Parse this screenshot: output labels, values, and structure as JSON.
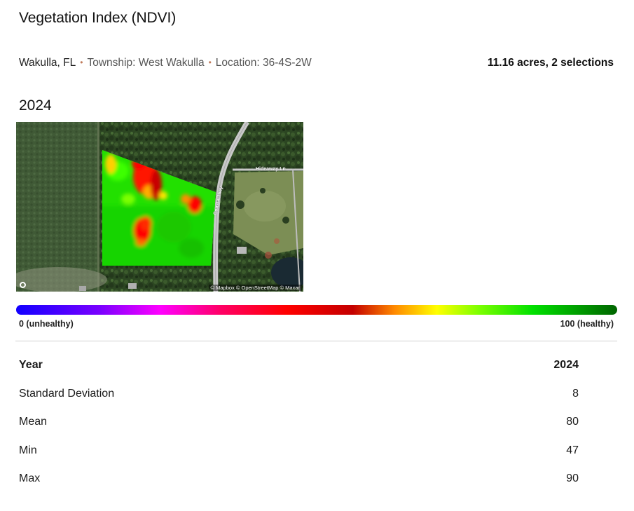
{
  "header": {
    "title": "Vegetation Index (NDVI)"
  },
  "location": {
    "county": "Wakulla, FL",
    "township": "Township: West Wakulla",
    "section": "Location: 36-4S-2W",
    "summary": "11.16 acres, 2 selections"
  },
  "map": {
    "year": "2024",
    "attribution": "© Mapbox © OpenStreetMap © Maxar",
    "road_labels": {
      "lane": "Hideaway Ln",
      "parkway": "Coastal Hwy"
    },
    "logo_icon": "mapbox-logo-icon"
  },
  "legend": {
    "min_label": "0 (unhealthy)",
    "max_label": "100 (healthy)",
    "gradient_colors": [
      "#1200ff",
      "#7a00ff",
      "#ff00ff",
      "#ff0066",
      "#ff0000",
      "#c40000",
      "#ff8a00",
      "#ffff00",
      "#7cff00",
      "#00e000",
      "#006400"
    ]
  },
  "stats": {
    "header": {
      "label": "Year",
      "value": "2024"
    },
    "rows": [
      {
        "label": "Standard Deviation",
        "value": "8"
      },
      {
        "label": "Mean",
        "value": "80"
      },
      {
        "label": "Min",
        "value": "47"
      },
      {
        "label": "Max",
        "value": "90"
      }
    ]
  }
}
